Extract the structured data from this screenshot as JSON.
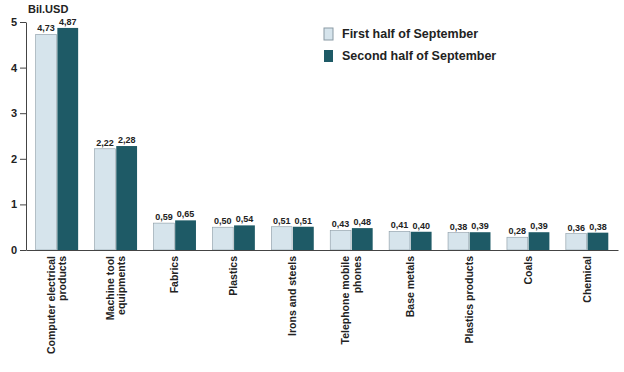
{
  "chart_data": {
    "type": "bar",
    "y_label": "Bil.USD",
    "categories": [
      "Computer electrical products",
      "Machine tool equipments",
      "Fabrics",
      "Plastics",
      "Irons and steels",
      "Telephone mobile phones",
      "Base metals",
      "Plastics products",
      "Coals",
      "Chemical"
    ],
    "series": [
      {
        "name": "First half of September",
        "color": "#d6e4ec",
        "values": [
          4.73,
          2.22,
          0.59,
          0.5,
          0.51,
          0.43,
          0.41,
          0.38,
          0.28,
          0.36
        ],
        "value_labels": [
          "4,73",
          "2,22",
          "0,59",
          "0,50",
          "0,51",
          "0,43",
          "0,41",
          "0,38",
          "0,28",
          "0,36"
        ]
      },
      {
        "name": "Second half of September",
        "color": "#1e5a66",
        "values": [
          4.87,
          2.28,
          0.65,
          0.54,
          0.51,
          0.48,
          0.4,
          0.39,
          0.39,
          0.38
        ],
        "value_labels": [
          "4,87",
          "2,28",
          "0,65",
          "0,54",
          "0,51",
          "0,48",
          "0,40",
          "0,39",
          "0,39",
          "0,38"
        ]
      }
    ],
    "ylim": [
      0,
      5
    ],
    "yticks": [
      0,
      1,
      2,
      3,
      4,
      5
    ],
    "grid": false,
    "legend": "top-right",
    "data_labels": true
  }
}
